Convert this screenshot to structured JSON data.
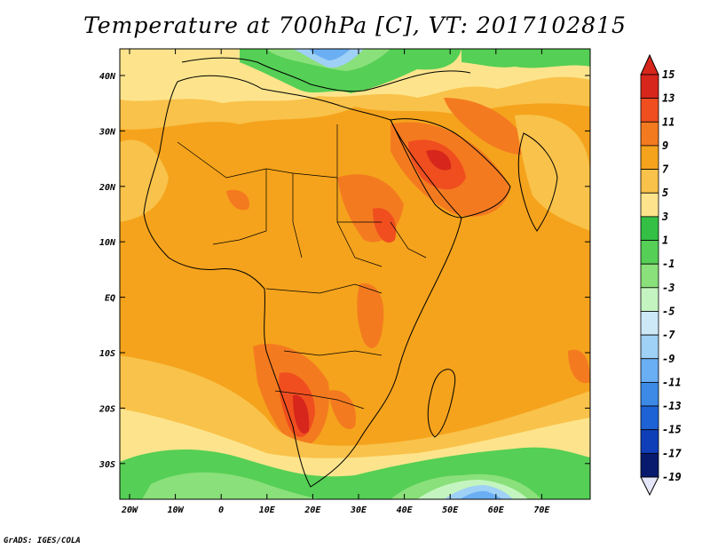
{
  "title": "Temperature at 700hPa [C], VT: 2017102815",
  "credit": "GrADS: IGES/COLA",
  "lat_labels": [
    "40N",
    "30N",
    "20N",
    "10N",
    "EQ",
    "10S",
    "20S",
    "30S"
  ],
  "lon_labels": [
    "20W",
    "10W",
    "0",
    "10E",
    "20E",
    "30E",
    "40E",
    "50E",
    "60E",
    "70E"
  ],
  "colorbar": {
    "labels": [
      "15",
      "13",
      "11",
      "9",
      "7",
      "5",
      "3",
      "1",
      "-1",
      "-3",
      "-5",
      "-7",
      "-9",
      "-11",
      "-13",
      "-15",
      "-17",
      "-19"
    ],
    "colors": [
      "#d7261b",
      "#f04e1f",
      "#f47a20",
      "#f5a31c",
      "#f9c24a",
      "#fde48c",
      "#33c044",
      "#55cf55",
      "#8ae07a",
      "#c4f5c0",
      "#cde9f7",
      "#9fd0f5",
      "#6aaef3",
      "#3c8ae6",
      "#1e63d6",
      "#0f3fb8",
      "#071a6e"
    ],
    "top_color": "#d7261b",
    "bottom_color": "#e6e6fa"
  }
}
